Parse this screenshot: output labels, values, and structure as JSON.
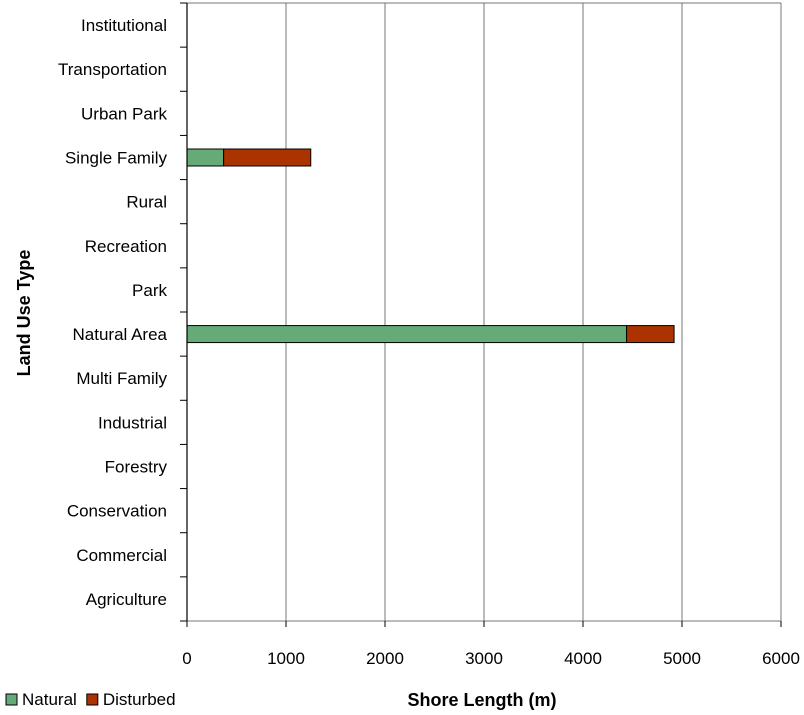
{
  "chart_data": {
    "type": "bar",
    "orientation": "horizontal",
    "stacked": true,
    "categories": [
      "Institutional",
      "Transportation",
      "Urban Park",
      "Single Family",
      "Rural",
      "Recreation",
      "Park",
      "Natural Area",
      "Multi Family",
      "Industrial",
      "Forestry",
      "Conservation",
      "Commercial",
      "Agriculture"
    ],
    "series": [
      {
        "name": "Natural",
        "color": "#66aa77",
        "values": [
          0,
          0,
          0,
          370,
          0,
          0,
          0,
          4440,
          0,
          0,
          0,
          0,
          0,
          0
        ]
      },
      {
        "name": "Disturbed",
        "color": "#aa3300",
        "values": [
          0,
          0,
          0,
          880,
          0,
          0,
          0,
          480,
          0,
          0,
          0,
          0,
          0,
          0
        ]
      }
    ],
    "xlabel": "Shore Length (m)",
    "ylabel": "Land Use Type",
    "xlim": [
      0,
      6000
    ],
    "x_ticks": [
      "0",
      "1000",
      "2000",
      "3000",
      "4000",
      "5000",
      "6000"
    ],
    "grid": "vertical",
    "legend_position": "bottom-left"
  }
}
